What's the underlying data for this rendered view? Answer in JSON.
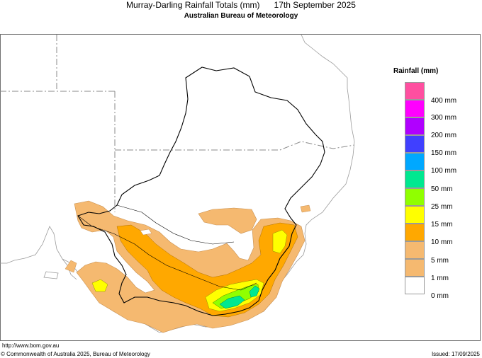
{
  "header": {
    "title": "Murray-Darling Rainfall Totals (mm)      17th September 2025",
    "subtitle": "Australian Bureau of Meteorology"
  },
  "legend": {
    "title": "Rainfall (mm)",
    "items": [
      {
        "label": "400 mm",
        "color": "#ff4fa0"
      },
      {
        "label": "300 mm",
        "color": "#ff00ff"
      },
      {
        "label": "200 mm",
        "color": "#b000ff"
      },
      {
        "label": "150 mm",
        "color": "#4040ff"
      },
      {
        "label": "100 mm",
        "color": "#00a8ff"
      },
      {
        "label": "50 mm",
        "color": "#00e890"
      },
      {
        "label": "25 mm",
        "color": "#90ff00"
      },
      {
        "label": "15 mm",
        "color": "#ffff00"
      },
      {
        "label": "10 mm",
        "color": "#ffa800"
      },
      {
        "label": "5 mm",
        "color": "#f5b970"
      },
      {
        "label": "1 mm",
        "color": "#ffffff"
      },
      {
        "label": "0 mm",
        "color": "#ffffff"
      }
    ]
  },
  "footer": {
    "url": "http://www.bom.gov.au",
    "copyright": "© Commonwealth of Australia 2025, Bureau of Meteorology",
    "issued": "Issued: 17/09/2025"
  }
}
